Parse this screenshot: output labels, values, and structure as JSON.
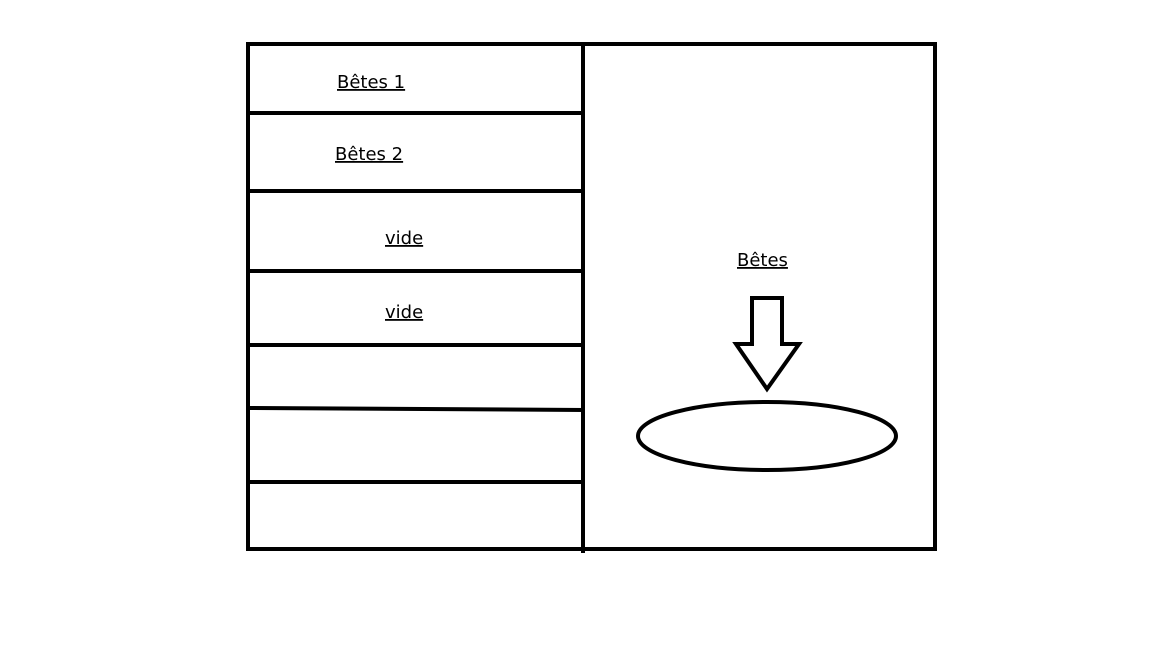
{
  "slots": [
    {
      "label": "Bêtes 1"
    },
    {
      "label": "Bêtes 2"
    },
    {
      "label": "vide"
    },
    {
      "label": "vide"
    },
    {
      "label": ""
    },
    {
      "label": ""
    },
    {
      "label": ""
    }
  ],
  "target": {
    "label": "Bêtes"
  },
  "colors": {
    "stroke": "#000000",
    "background": "#ffffff"
  },
  "icons": {
    "arrow": "down-arrow-icon",
    "drop_zone": "ellipse-drop-zone"
  }
}
